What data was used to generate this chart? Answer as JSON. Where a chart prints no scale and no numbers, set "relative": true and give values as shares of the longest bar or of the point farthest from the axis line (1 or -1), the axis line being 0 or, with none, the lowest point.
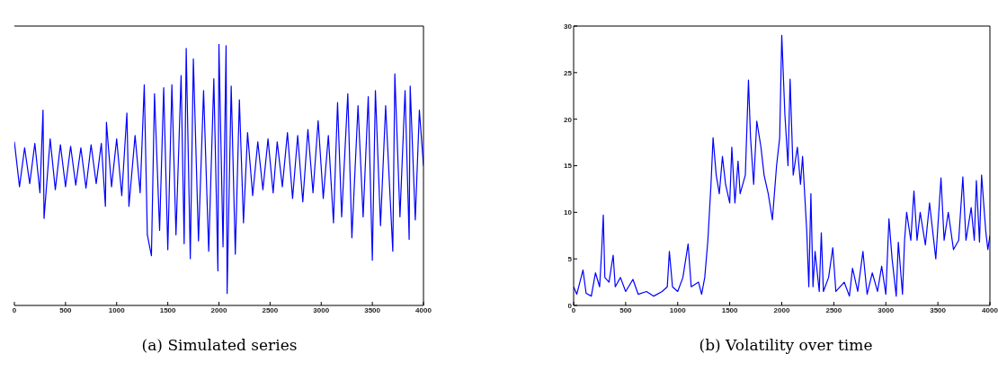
{
  "chart_data": [
    {
      "type": "line",
      "title": "(a) Simulated series",
      "relative": true,
      "tick_labels": "x",
      "xlim": [
        0,
        4000
      ],
      "xticks": [
        0,
        500,
        1000,
        1500,
        2000,
        2500,
        3000,
        3500,
        4000
      ],
      "x": [
        0,
        50,
        100,
        150,
        200,
        250,
        280,
        290,
        350,
        400,
        450,
        500,
        550,
        600,
        650,
        700,
        750,
        800,
        850,
        890,
        900,
        950,
        1000,
        1050,
        1100,
        1120,
        1180,
        1230,
        1270,
        1300,
        1340,
        1370,
        1420,
        1460,
        1500,
        1540,
        1580,
        1630,
        1660,
        1680,
        1720,
        1750,
        1800,
        1850,
        1900,
        1950,
        1990,
        2000,
        2040,
        2070,
        2080,
        2120,
        2160,
        2200,
        2240,
        2280,
        2330,
        2380,
        2430,
        2480,
        2530,
        2570,
        2620,
        2670,
        2720,
        2770,
        2820,
        2870,
        2920,
        2970,
        3020,
        3070,
        3120,
        3160,
        3200,
        3260,
        3300,
        3360,
        3410,
        3460,
        3500,
        3530,
        3580,
        3630,
        3700,
        3720,
        3770,
        3820,
        3860,
        3870,
        3920,
        3960,
        4000
      ],
      "series": [
        {
          "color": "#0000ff",
          "values": [
            0.626,
            0.454,
            0.603,
            0.466,
            0.62,
            0.431,
            0.747,
            0.333,
            0.637,
            0.443,
            0.615,
            0.454,
            0.609,
            0.46,
            0.603,
            0.449,
            0.615,
            0.466,
            0.62,
            0.379,
            0.701,
            0.454,
            0.637,
            0.42,
            0.736,
            0.379,
            0.65,
            0.431,
            0.844,
            0.27,
            0.19,
            0.81,
            0.287,
            0.833,
            0.213,
            0.844,
            0.27,
            0.879,
            0.236,
            0.983,
            0.179,
            0.943,
            0.247,
            0.822,
            0.207,
            0.867,
            0.132,
            1.0,
            0.224,
            0.994,
            0.046,
            0.839,
            0.196,
            0.787,
            0.316,
            0.661,
            0.42,
            0.626,
            0.443,
            0.637,
            0.431,
            0.626,
            0.454,
            0.661,
            0.409,
            0.65,
            0.396,
            0.673,
            0.431,
            0.707,
            0.409,
            0.65,
            0.316,
            0.776,
            0.339,
            0.81,
            0.259,
            0.764,
            0.339,
            0.799,
            0.173,
            0.822,
            0.305,
            0.764,
            0.207,
            0.886,
            0.339,
            0.822,
            0.253,
            0.839,
            0.327,
            0.747,
            0.534
          ]
        }
      ]
    },
    {
      "type": "line",
      "title": "(b) Volatility over time",
      "xlim": [
        0,
        4000
      ],
      "xticks": [
        0,
        500,
        1000,
        1500,
        2000,
        2500,
        3000,
        3500,
        4000
      ],
      "ylim": [
        0,
        30
      ],
      "yticks": [
        0,
        5,
        10,
        15,
        20,
        25,
        30
      ],
      "x": [
        0,
        30,
        60,
        90,
        120,
        170,
        210,
        250,
        270,
        285,
        300,
        340,
        380,
        400,
        450,
        500,
        570,
        620,
        700,
        770,
        850,
        900,
        920,
        950,
        1000,
        1050,
        1100,
        1130,
        1200,
        1230,
        1260,
        1290,
        1320,
        1340,
        1370,
        1400,
        1430,
        1460,
        1500,
        1520,
        1550,
        1580,
        1600,
        1650,
        1680,
        1700,
        1730,
        1760,
        1800,
        1830,
        1870,
        1910,
        1950,
        1980,
        2000,
        2030,
        2060,
        2080,
        2110,
        2150,
        2180,
        2200,
        2240,
        2260,
        2280,
        2300,
        2320,
        2360,
        2380,
        2400,
        2450,
        2490,
        2520,
        2600,
        2650,
        2680,
        2730,
        2780,
        2820,
        2870,
        2920,
        2960,
        3000,
        3030,
        3060,
        3100,
        3120,
        3160,
        3180,
        3200,
        3240,
        3270,
        3300,
        3330,
        3380,
        3420,
        3450,
        3480,
        3530,
        3560,
        3600,
        3650,
        3700,
        3740,
        3770,
        3820,
        3850,
        3870,
        3900,
        3920,
        3960,
        3980,
        4000
      ],
      "series": [
        {
          "color": "#0000ff",
          "values": [
            2,
            1.2,
            2.5,
            3.8,
            1.3,
            1,
            3.5,
            2,
            6,
            9.7,
            3,
            2.5,
            5.4,
            2,
            3,
            1.5,
            2.8,
            1.2,
            1.5,
            1,
            1.5,
            2,
            5.8,
            2,
            1.5,
            3,
            6.6,
            2,
            2.5,
            1.2,
            3,
            7,
            13,
            18,
            14,
            12,
            16,
            13,
            11,
            17,
            11,
            15.5,
            12,
            14,
            24.2,
            18,
            13,
            19.8,
            17,
            14,
            12,
            9.2,
            15,
            18,
            29,
            20.5,
            15,
            24.3,
            14,
            17,
            13,
            16,
            8,
            2,
            12,
            2,
            5.8,
            1.5,
            7.8,
            1.5,
            3,
            6.2,
            1.5,
            2.5,
            1,
            4,
            1.5,
            5.8,
            1.2,
            3.5,
            1.5,
            4.2,
            1.2,
            9.3,
            5,
            1,
            6.8,
            1.2,
            7,
            10,
            7,
            12.3,
            7,
            10,
            6.5,
            11,
            8,
            5,
            13.7,
            7,
            10,
            6,
            7,
            13.8,
            7,
            10.5,
            7,
            13.4,
            6.8,
            14,
            8,
            6,
            7.5
          ]
        }
      ]
    }
  ]
}
